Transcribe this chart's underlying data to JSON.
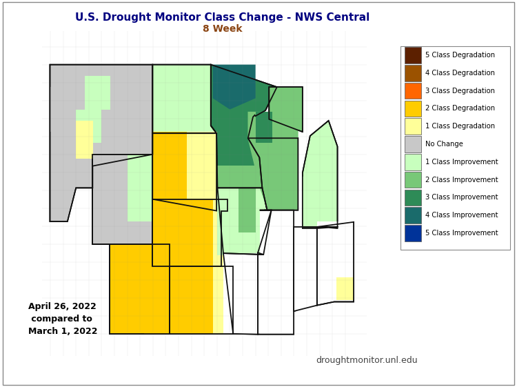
{
  "title_line1": "U.S. Drought Monitor Class Change - NWS Central",
  "title_line2": "8 Week",
  "date_text": "April 26, 2022\n compared to\nMarch 1, 2022",
  "website_text": "droughtmonitor.unl.edu",
  "legend_entries": [
    {
      "label": "5 Class Degradation",
      "color": "#5C2000"
    },
    {
      "label": "4 Class Degradation",
      "color": "#9B5200"
    },
    {
      "label": "3 Class Degradation",
      "color": "#FF6600"
    },
    {
      "label": "2 Class Degradation",
      "color": "#FFCC00"
    },
    {
      "label": "1 Class Degradation",
      "color": "#FFFF99"
    },
    {
      "label": "No Change",
      "color": "#C8C8C8"
    },
    {
      "label": "1 Class Improvement",
      "color": "#C8FFBE"
    },
    {
      "label": "2 Class Improvement",
      "color": "#78C878"
    },
    {
      "label": "3 Class Improvement",
      "color": "#2E8B57"
    },
    {
      "label": "4 Class Improvement",
      "color": "#1A6B6B"
    },
    {
      "label": "5 Class Improvement",
      "color": "#003399"
    }
  ],
  "background_color": "#FFFFFF",
  "title_color": "#000080",
  "subtitle_color": "#8B4513",
  "lon_min": -117,
  "lon_max": -79,
  "lat_min": 36,
  "lat_max": 50.5
}
